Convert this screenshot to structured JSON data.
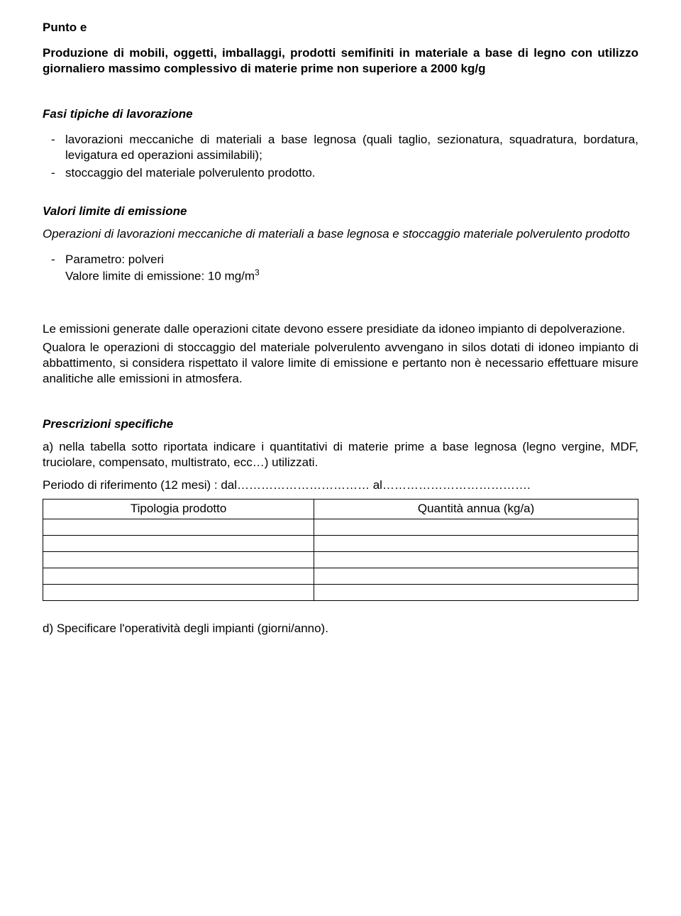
{
  "title": "Punto e",
  "intro": "Produzione di mobili, oggetti, imballaggi, prodotti semifiniti in materiale a base di legno con utilizzo giornaliero massimo complessivo di materie prime non superiore a 2000 kg/g",
  "fasi_heading": "Fasi tipiche di lavorazione",
  "fasi_items": [
    "lavorazioni meccaniche di materiali a base legnosa (quali taglio, sezionatura, squadratura, bordatura, levigatura ed operazioni assimilabili);",
    "stoccaggio del materiale polverulento prodotto."
  ],
  "valori_heading": "Valori limite di emissione",
  "valori_sub": "Operazioni di lavorazioni meccaniche di materiali a base legnosa e stoccaggio materiale polverulento prodotto",
  "valori_item_line1": "Parametro: polveri",
  "valori_item_line2_a": "Valore limite di emissione: 10 mg/m",
  "valori_item_line2_sup": "3",
  "emissioni_p1": "Le emissioni generate dalle operazioni citate devono essere presidiate da idoneo impianto di depolverazione.",
  "emissioni_p2": "Qualora le operazioni di stoccaggio del materiale polverulento avvengano in silos dotati di idoneo impianto di abbattimento, si considera rispettato il valore limite di emissione e pertanto non è necessario effettuare misure analitiche alle emissioni in atmosfera.",
  "prescrizioni_heading": "Prescrizioni specifiche",
  "prescrizione_a": "a) nella tabella sotto riportata indicare i quantitativi di materie prime a base legnosa (legno vergine, MDF, truciolare, compensato, multistrato, ecc…) utilizzati.",
  "periodo": "Periodo di riferimento (12 mesi) : dal…………………………… al……………………………….",
  "table_headers": [
    "Tipologia prodotto",
    "Quantità annua (kg/a)"
  ],
  "table_rows": [
    [
      "",
      ""
    ],
    [
      "",
      ""
    ],
    [
      "",
      ""
    ],
    [
      "",
      ""
    ],
    [
      "",
      ""
    ]
  ],
  "prescrizione_d": "d)  Specificare l'operatività degli impianti (giorni/anno)."
}
